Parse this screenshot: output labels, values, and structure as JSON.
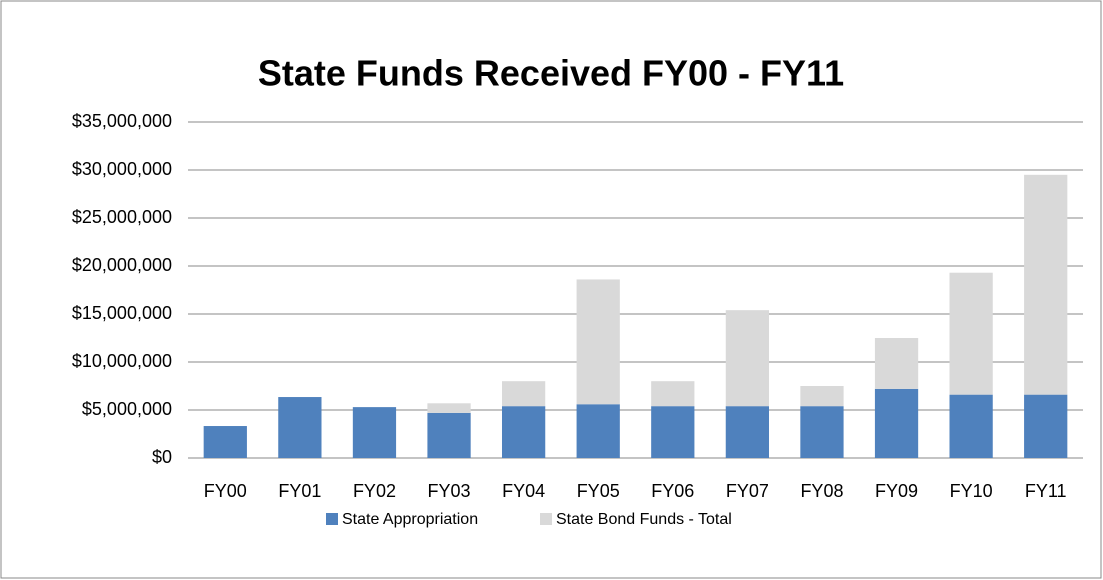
{
  "chart_data": {
    "type": "bar",
    "stacked": true,
    "title": "State Funds Received FY00 - FY11",
    "categories": [
      "FY00",
      "FY01",
      "FY02",
      "FY03",
      "FY04",
      "FY05",
      "FY06",
      "FY07",
      "FY08",
      "FY09",
      "FY10",
      "FY11"
    ],
    "series": [
      {
        "name": "State Appropriation",
        "color": "#4f81bd",
        "values": [
          3330000,
          6350000,
          5300000,
          4700000,
          5400000,
          5600000,
          5400000,
          5400000,
          5400000,
          7200000,
          6600000,
          6600000
        ]
      },
      {
        "name": "State Bond Funds - Total",
        "color": "#d9d9d9",
        "values": [
          0,
          0,
          0,
          1000000,
          2600000,
          13000000,
          2600000,
          10000000,
          2100000,
          5300000,
          12700000,
          22900000
        ]
      }
    ],
    "ylim": [
      0,
      35000000
    ],
    "yticks": [
      {
        "value": 0,
        "label": "$0"
      },
      {
        "value": 5000000,
        "label": "$5,000,000"
      },
      {
        "value": 10000000,
        "label": "$10,000,000"
      },
      {
        "value": 15000000,
        "label": "$15,000,000"
      },
      {
        "value": 20000000,
        "label": "$20,000,000"
      },
      {
        "value": 25000000,
        "label": "$25,000,000"
      },
      {
        "value": 30000000,
        "label": "$30,000,000"
      },
      {
        "value": 35000000,
        "label": "$35,000,000"
      }
    ],
    "grid": true,
    "legend": "bottom"
  }
}
